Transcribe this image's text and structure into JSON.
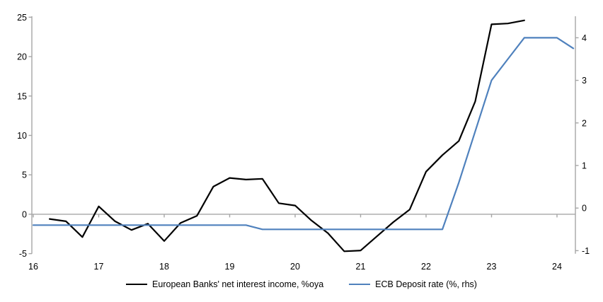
{
  "colors": {
    "background": "#ffffff",
    "axis_gray": "#a6a6a6",
    "series_nii": "#000000",
    "series_ecb": "#4f81bd",
    "text": "#000000"
  },
  "legend": {
    "items": [
      {
        "label": "European Banks' net interest income, %oya",
        "color": "#000000"
      },
      {
        "label": "ECB Deposit rate (%, rhs)",
        "color": "#4f81bd"
      }
    ]
  },
  "chart_data": {
    "type": "line",
    "title": "",
    "grid": "zero-line-only",
    "legend_position": "bottom",
    "x_axis": {
      "tick_labels": [
        "16",
        "17",
        "18",
        "19",
        "20",
        "21",
        "22",
        "23",
        "24"
      ],
      "tick_values": [
        16,
        17,
        18,
        19,
        20,
        21,
        22,
        23,
        24
      ],
      "range": [
        16,
        24.35
      ]
    },
    "left_axis": {
      "tick_labels": [
        "25",
        "20",
        "15",
        "10",
        "5",
        "0",
        "-5"
      ],
      "tick_values": [
        25,
        20,
        15,
        10,
        5,
        0,
        -5
      ],
      "range": [
        -5,
        25
      ]
    },
    "right_axis": {
      "tick_labels": [
        "4",
        "3",
        "2",
        "1",
        "0",
        "-1"
      ],
      "tick_values": [
        4,
        3,
        2,
        1,
        0,
        -1
      ],
      "range": [
        -1.07,
        4.5
      ]
    },
    "series": [
      {
        "name": "European Banks' net interest income, %oya",
        "axis": "left",
        "color": "#000000",
        "x": [
          16.25,
          16.5,
          16.75,
          17.0,
          17.25,
          17.5,
          17.75,
          18.0,
          18.25,
          18.5,
          18.75,
          19.0,
          19.25,
          19.5,
          19.75,
          20.0,
          20.25,
          20.5,
          20.75,
          21.0,
          21.25,
          21.5,
          21.75,
          22.0,
          22.25,
          22.5,
          22.75,
          23.0,
          23.25,
          23.5
        ],
        "values": [
          -0.6,
          -0.9,
          -2.9,
          1.0,
          -0.9,
          -2.0,
          -1.2,
          -3.4,
          -1.1,
          -0.2,
          3.5,
          4.6,
          4.4,
          4.5,
          1.4,
          1.1,
          -0.8,
          -2.4,
          -4.7,
          -4.6,
          -2.8,
          -1.0,
          0.6,
          5.4,
          7.5,
          9.3,
          14.3,
          24.1,
          24.2,
          24.6
        ]
      },
      {
        "name": "ECB Deposit rate (%, rhs)",
        "axis": "right",
        "color": "#4f81bd",
        "x": [
          16.0,
          16.25,
          16.5,
          16.75,
          17.0,
          17.25,
          17.5,
          17.75,
          18.0,
          18.25,
          18.5,
          18.75,
          19.0,
          19.25,
          19.5,
          19.75,
          20.0,
          20.25,
          20.5,
          20.75,
          21.0,
          21.25,
          21.5,
          21.75,
          22.0,
          22.25,
          22.5,
          22.75,
          23.0,
          23.25,
          23.5,
          23.75,
          24.0,
          24.25
        ],
        "values": [
          -0.4,
          -0.4,
          -0.4,
          -0.4,
          -0.4,
          -0.4,
          -0.4,
          -0.4,
          -0.4,
          -0.4,
          -0.4,
          -0.4,
          -0.4,
          -0.4,
          -0.5,
          -0.5,
          -0.5,
          -0.5,
          -0.5,
          -0.5,
          -0.5,
          -0.5,
          -0.5,
          -0.5,
          -0.5,
          -0.5,
          0.6,
          1.8,
          3.0,
          3.5,
          4.0,
          4.0,
          4.0,
          3.75
        ]
      }
    ]
  }
}
